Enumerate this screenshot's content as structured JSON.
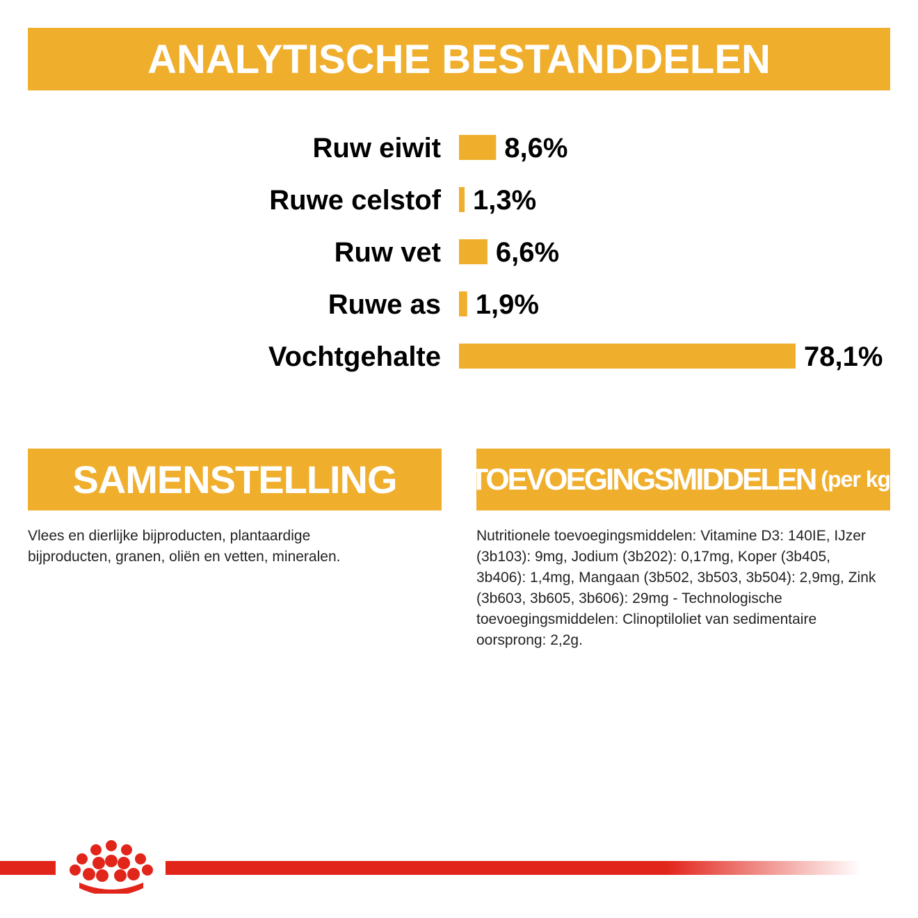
{
  "header": {
    "title": "ANALYTISCHE BESTANDDELEN"
  },
  "chart_data": {
    "type": "bar",
    "orientation": "horizontal",
    "categories": [
      "Ruw eiwit",
      "Ruwe celstof",
      "Ruw vet",
      "Ruwe as",
      "Vochtgehalte"
    ],
    "values": [
      8.6,
      1.3,
      6.6,
      1.9,
      78.1
    ],
    "value_labels": [
      "8,6%",
      "1,3%",
      "6,6%",
      "1,9%",
      "78,1%"
    ],
    "unit": "%",
    "xlim": [
      0,
      78.1
    ],
    "grid": false,
    "bar_color": "#F0AE2D"
  },
  "composition": {
    "title": "SAMENSTELLING",
    "text": "Vlees en dierlijke bijproducten, plantaardige bijproducten, granen, oliën en vetten, mineralen."
  },
  "additives": {
    "title": "TOEVOEGINGSMIDDELEN",
    "title_suffix": "(per kg)",
    "text": "Nutritionele toevoegingsmiddelen: Vitamine D3: 140IE, IJzer (3b103): 9mg, Jodium (3b202): 0,17mg, Koper (3b405, 3b406): 1,4mg, Mangaan (3b502, 3b503, 3b504): 2,9mg, Zink (3b603, 3b605, 3b606): 29mg - Technologische toevoegingsmiddelen: Clinoptiloliet van sedimentaire oorsprong: 2,2g."
  },
  "colors": {
    "accent": "#F0AE2D",
    "brand_red": "#E1251B"
  },
  "footer": {
    "logo_icon": "crown-icon"
  }
}
